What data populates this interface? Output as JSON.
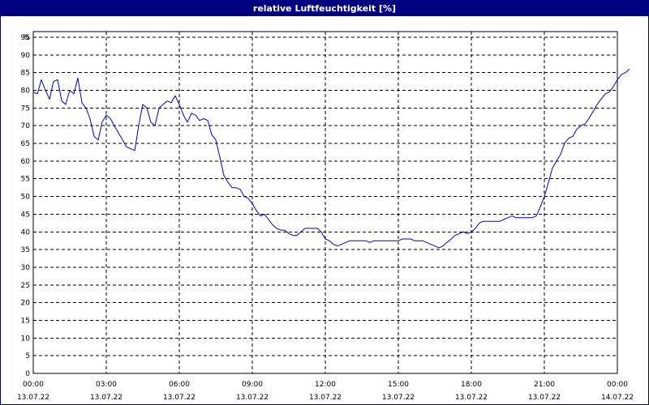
{
  "window": {
    "title": "relative Luftfeuchtigkeit [%]"
  },
  "colors": {
    "title_bg": "#000080",
    "title_fg": "#ffffff",
    "line": "#0000c8",
    "grid": "#000000",
    "axis": "#000000"
  },
  "chart_data": {
    "type": "line",
    "title": "relative Luftfeuchtigkeit [%]",
    "ylabel": "%",
    "xlabel": "",
    "ylim": [
      0,
      100
    ],
    "grid": true,
    "grid_style": "dashed",
    "x_range_hours": [
      0,
      24
    ],
    "y_ticks": [
      0,
      5,
      10,
      15,
      20,
      25,
      30,
      35,
      40,
      45,
      50,
      55,
      60,
      65,
      70,
      75,
      80,
      85,
      90,
      95
    ],
    "x_ticks": [
      {
        "hour": 0,
        "time": "00:00",
        "date": "13.07.22"
      },
      {
        "hour": 3,
        "time": "03:00",
        "date": "13.07.22"
      },
      {
        "hour": 6,
        "time": "06:00",
        "date": "13.07.22"
      },
      {
        "hour": 9,
        "time": "09:00",
        "date": "13.07.22"
      },
      {
        "hour": 12,
        "time": "12:00",
        "date": "13.07.22"
      },
      {
        "hour": 15,
        "time": "15:00",
        "date": "13.07.22"
      },
      {
        "hour": 18,
        "time": "18:00",
        "date": "13.07.22"
      },
      {
        "hour": 21,
        "time": "21:00",
        "date": "13.07.22"
      },
      {
        "hour": 24,
        "time": "00:00",
        "date": "14.07.22"
      }
    ],
    "series": [
      {
        "color": "#0000c8",
        "points": [
          [
            0.0,
            79.5
          ],
          [
            0.17,
            79
          ],
          [
            0.33,
            83
          ],
          [
            0.5,
            80
          ],
          [
            0.67,
            77.5
          ],
          [
            0.83,
            82.5
          ],
          [
            1.0,
            83
          ],
          [
            1.17,
            77
          ],
          [
            1.33,
            76
          ],
          [
            1.5,
            80
          ],
          [
            1.67,
            79
          ],
          [
            1.83,
            83.5
          ],
          [
            2.0,
            76.5
          ],
          [
            2.17,
            75
          ],
          [
            2.33,
            72
          ],
          [
            2.5,
            67
          ],
          [
            2.67,
            66
          ],
          [
            2.83,
            71
          ],
          [
            3.0,
            73
          ],
          [
            3.17,
            72
          ],
          [
            3.33,
            70
          ],
          [
            3.5,
            68
          ],
          [
            3.67,
            66
          ],
          [
            3.83,
            64
          ],
          [
            4.0,
            63.5
          ],
          [
            4.17,
            63
          ],
          [
            4.33,
            70
          ],
          [
            4.5,
            76
          ],
          [
            4.67,
            75
          ],
          [
            4.83,
            71
          ],
          [
            5.0,
            70
          ],
          [
            5.17,
            75
          ],
          [
            5.33,
            76
          ],
          [
            5.5,
            77
          ],
          [
            5.67,
            76.5
          ],
          [
            5.83,
            78.5
          ],
          [
            6.0,
            76
          ],
          [
            6.17,
            73
          ],
          [
            6.33,
            71
          ],
          [
            6.5,
            73.5
          ],
          [
            6.67,
            73
          ],
          [
            6.83,
            71.5
          ],
          [
            7.0,
            72
          ],
          [
            7.17,
            71.5
          ],
          [
            7.33,
            67.5
          ],
          [
            7.5,
            66
          ],
          [
            7.67,
            61
          ],
          [
            7.83,
            56
          ],
          [
            8.0,
            54
          ],
          [
            8.17,
            52.5
          ],
          [
            8.33,
            52.5
          ],
          [
            8.5,
            52
          ],
          [
            8.67,
            50
          ],
          [
            8.83,
            49.5
          ],
          [
            9.0,
            48
          ],
          [
            9.17,
            46
          ],
          [
            9.33,
            44.5
          ],
          [
            9.5,
            45
          ],
          [
            9.67,
            43.5
          ],
          [
            9.83,
            42
          ],
          [
            10.0,
            41
          ],
          [
            10.17,
            40.5
          ],
          [
            10.33,
            40.5
          ],
          [
            10.5,
            39.5
          ],
          [
            10.67,
            39
          ],
          [
            10.83,
            39
          ],
          [
            11.0,
            40
          ],
          [
            11.17,
            41
          ],
          [
            11.33,
            41
          ],
          [
            11.5,
            41
          ],
          [
            11.67,
            41
          ],
          [
            11.83,
            40
          ],
          [
            12.0,
            38
          ],
          [
            12.17,
            37.5
          ],
          [
            12.33,
            36.5
          ],
          [
            12.5,
            36
          ],
          [
            12.67,
            36.5
          ],
          [
            12.83,
            37
          ],
          [
            13.0,
            37.5
          ],
          [
            13.17,
            37.5
          ],
          [
            13.33,
            37.5
          ],
          [
            13.5,
            37.5
          ],
          [
            13.67,
            37.5
          ],
          [
            13.83,
            37
          ],
          [
            14.0,
            37.5
          ],
          [
            14.17,
            37.5
          ],
          [
            14.33,
            37.5
          ],
          [
            14.5,
            37.5
          ],
          [
            14.67,
            37.5
          ],
          [
            14.83,
            37.5
          ],
          [
            15.0,
            37.5
          ],
          [
            15.17,
            38
          ],
          [
            15.33,
            38
          ],
          [
            15.5,
            38
          ],
          [
            15.67,
            37.5
          ],
          [
            15.83,
            37.5
          ],
          [
            16.0,
            37.5
          ],
          [
            16.17,
            37
          ],
          [
            16.33,
            36.5
          ],
          [
            16.5,
            36
          ],
          [
            16.67,
            35.5
          ],
          [
            16.83,
            36
          ],
          [
            17.0,
            37
          ],
          [
            17.17,
            38
          ],
          [
            17.33,
            39
          ],
          [
            17.5,
            39.5
          ],
          [
            17.67,
            40
          ],
          [
            17.83,
            39.5
          ],
          [
            18.0,
            40
          ],
          [
            18.17,
            41
          ],
          [
            18.33,
            42.5
          ],
          [
            18.5,
            43
          ],
          [
            18.67,
            43
          ],
          [
            18.83,
            43
          ],
          [
            19.0,
            43
          ],
          [
            19.17,
            43
          ],
          [
            19.33,
            43.5
          ],
          [
            19.5,
            44
          ],
          [
            19.67,
            44.5
          ],
          [
            19.83,
            44
          ],
          [
            20.0,
            44
          ],
          [
            20.17,
            44
          ],
          [
            20.33,
            44
          ],
          [
            20.5,
            44
          ],
          [
            20.67,
            44.5
          ],
          [
            20.83,
            47
          ],
          [
            21.0,
            50
          ],
          [
            21.17,
            54
          ],
          [
            21.33,
            58
          ],
          [
            21.5,
            60
          ],
          [
            21.67,
            62
          ],
          [
            21.83,
            65
          ],
          [
            22.0,
            66.5
          ],
          [
            22.17,
            67
          ],
          [
            22.33,
            69
          ],
          [
            22.5,
            70
          ],
          [
            22.67,
            70.5
          ],
          [
            22.83,
            72
          ],
          [
            23.0,
            74
          ],
          [
            23.17,
            76
          ],
          [
            23.33,
            77.5
          ],
          [
            23.5,
            79
          ],
          [
            23.67,
            79.5
          ],
          [
            23.83,
            81
          ],
          [
            24.0,
            83
          ],
          [
            24.17,
            84.5
          ],
          [
            24.33,
            85
          ],
          [
            24.5,
            86
          ]
        ]
      }
    ]
  }
}
